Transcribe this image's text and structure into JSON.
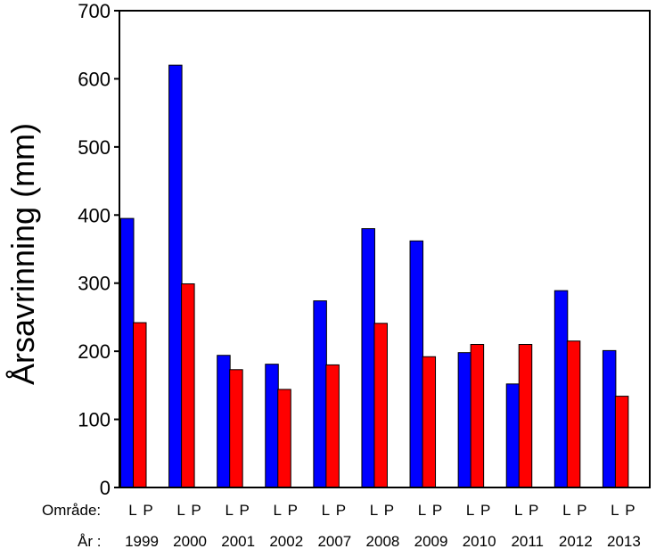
{
  "chart_data": {
    "type": "bar",
    "ylabel": "Årsavrinning  (mm)",
    "ylim": [
      0,
      700
    ],
    "yticks": [
      "0",
      "100",
      "200",
      "300",
      "400",
      "500",
      "600",
      "700"
    ],
    "row_labels": {
      "area": "Område:",
      "year": "År  :"
    },
    "series_letters": [
      "L",
      "P"
    ],
    "categories": [
      "1999",
      "2000",
      "2001",
      "2002",
      "2007",
      "2008",
      "2009",
      "2010",
      "2011",
      "2012",
      "2013"
    ],
    "series": [
      {
        "key": "L",
        "color": "#0000ff",
        "values": [
          395,
          620,
          194,
          181,
          274,
          380,
          362,
          198,
          152,
          289,
          201
        ]
      },
      {
        "key": "P",
        "color": "#ff0000",
        "values": [
          242,
          299,
          173,
          144,
          180,
          241,
          192,
          210,
          210,
          215,
          134
        ]
      }
    ],
    "grid": false,
    "legend": "none"
  }
}
